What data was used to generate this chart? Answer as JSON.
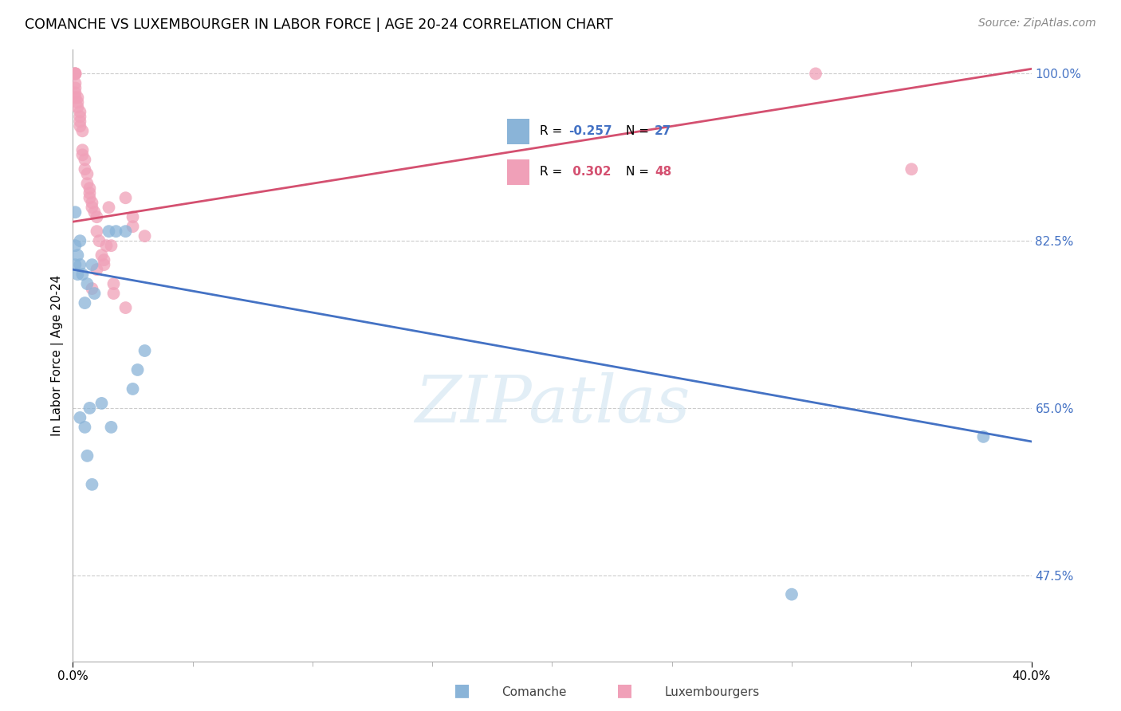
{
  "title": "COMANCHE VS LUXEMBOURGER IN LABOR FORCE | AGE 20-24 CORRELATION CHART",
  "source": "Source: ZipAtlas.com",
  "ylabel": "In Labor Force | Age 20-24",
  "xlim": [
    0.0,
    0.4
  ],
  "ylim": [
    0.385,
    1.025
  ],
  "ytick_positions": [
    1.0,
    0.825,
    0.65,
    0.475
  ],
  "ytick_labels": [
    "100.0%",
    "82.5%",
    "65.0%",
    "47.5%"
  ],
  "xtick_positions": [
    0.0,
    0.4
  ],
  "xtick_labels": [
    "0.0%",
    "40.0%"
  ],
  "grid_yticks": [
    1.0,
    0.825,
    0.65,
    0.475
  ],
  "comanche_x": [
    0.001,
    0.001,
    0.001,
    0.002,
    0.002,
    0.003,
    0.003,
    0.004,
    0.005,
    0.006,
    0.008,
    0.009,
    0.015,
    0.018,
    0.022,
    0.025,
    0.027,
    0.03,
    0.003,
    0.005,
    0.006,
    0.007,
    0.008,
    0.012,
    0.016,
    0.3,
    0.38
  ],
  "comanche_y": [
    0.8,
    0.82,
    0.855,
    0.79,
    0.81,
    0.8,
    0.825,
    0.79,
    0.76,
    0.78,
    0.8,
    0.77,
    0.835,
    0.835,
    0.835,
    0.67,
    0.69,
    0.71,
    0.64,
    0.63,
    0.6,
    0.65,
    0.57,
    0.655,
    0.63,
    0.455,
    0.62
  ],
  "luxembourger_x": [
    0.001,
    0.001,
    0.001,
    0.001,
    0.001,
    0.001,
    0.001,
    0.001,
    0.002,
    0.002,
    0.002,
    0.003,
    0.003,
    0.003,
    0.003,
    0.004,
    0.004,
    0.004,
    0.005,
    0.005,
    0.006,
    0.006,
    0.007,
    0.007,
    0.007,
    0.008,
    0.008,
    0.009,
    0.01,
    0.01,
    0.011,
    0.012,
    0.013,
    0.014,
    0.015,
    0.016,
    0.017,
    0.022,
    0.025,
    0.025,
    0.03,
    0.008,
    0.01,
    0.013,
    0.017,
    0.022,
    0.31,
    0.35
  ],
  "luxembourger_y": [
    1.0,
    1.0,
    1.0,
    1.0,
    0.99,
    0.985,
    0.98,
    0.975,
    0.975,
    0.97,
    0.965,
    0.96,
    0.955,
    0.95,
    0.945,
    0.94,
    0.92,
    0.915,
    0.91,
    0.9,
    0.895,
    0.885,
    0.88,
    0.875,
    0.87,
    0.865,
    0.86,
    0.855,
    0.85,
    0.835,
    0.825,
    0.81,
    0.8,
    0.82,
    0.86,
    0.82,
    0.78,
    0.87,
    0.84,
    0.85,
    0.83,
    0.775,
    0.795,
    0.805,
    0.77,
    0.755,
    1.0,
    0.9
  ],
  "comanche_r": -0.257,
  "comanche_n": 27,
  "luxembourger_r": 0.302,
  "luxembourger_n": 48,
  "comanche_color": "#8ab4d8",
  "luxembourger_color": "#f0a0b8",
  "comanche_line_color": "#4472c4",
  "luxembourger_line_color": "#d45070",
  "blue_line_x0": 0.0,
  "blue_line_y0": 0.795,
  "blue_line_x1": 0.4,
  "blue_line_y1": 0.615,
  "pink_line_x0": 0.0,
  "pink_line_y0": 0.845,
  "pink_line_x1": 0.4,
  "pink_line_y1": 1.005,
  "watermark": "ZIPatlas"
}
